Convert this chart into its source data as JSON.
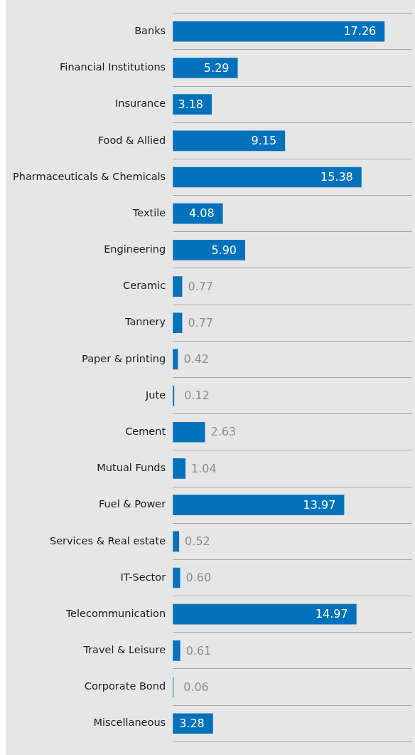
{
  "chart_data": {
    "type": "bar",
    "orientation": "horizontal",
    "categories": [
      "Banks",
      "Financial Institutions",
      "Insurance",
      "Food & Allied",
      "Pharmaceuticals & Chemicals",
      "Textile",
      "Engineering",
      "Ceramic",
      "Tannery",
      "Paper & printing",
      "Jute",
      "Cement",
      "Mutual Funds",
      "Fuel & Power",
      "Services & Real estate",
      "IT-Sector",
      "Telecommunication",
      "Travel & Leisure",
      "Corporate Bond",
      "Miscellaneous"
    ],
    "values": [
      17.26,
      5.29,
      3.18,
      9.15,
      15.38,
      4.08,
      5.9,
      0.77,
      0.77,
      0.42,
      0.12,
      2.63,
      1.04,
      13.97,
      0.52,
      0.6,
      14.97,
      0.61,
      0.06,
      3.28
    ],
    "value_labels": [
      "17.26",
      "5.29",
      "3.18",
      "9.15",
      "15.38",
      "4.08",
      "5.90",
      "0.77",
      "0.77",
      "0.42",
      "0.12",
      "2.63",
      "1.04",
      "13.97",
      "0.52",
      "0.60",
      "14.97",
      "0.61",
      "0.06",
      "3.28"
    ],
    "color": "#0072bc",
    "grid": "y",
    "legend": false
  }
}
